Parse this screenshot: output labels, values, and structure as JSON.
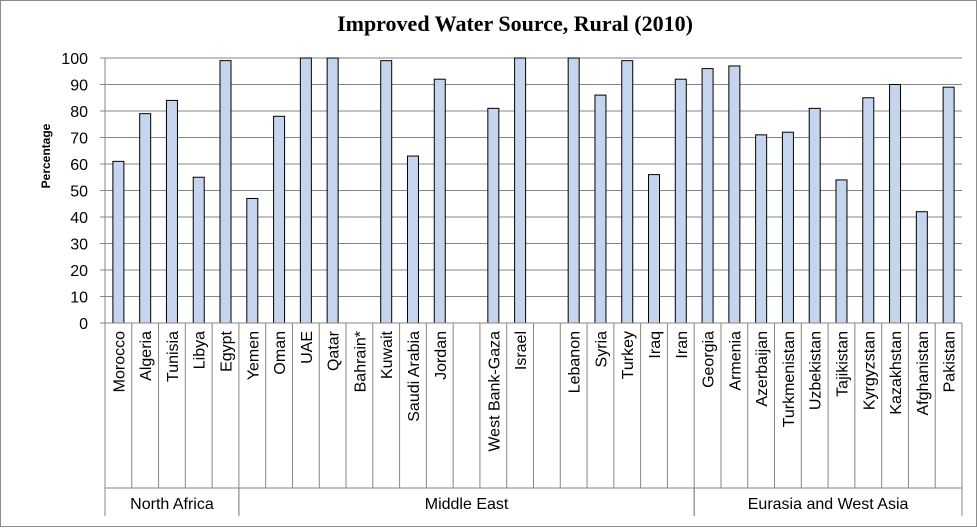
{
  "chart_data": {
    "type": "bar",
    "title": "Improved Water Source, Rural (2010)",
    "xlabel": "",
    "ylabel": "Percentage",
    "ylim": [
      0,
      100
    ],
    "yticks": [
      0,
      10,
      20,
      30,
      40,
      50,
      60,
      70,
      80,
      90,
      100
    ],
    "grid": true,
    "legend": "none",
    "categories": [
      "Morocco",
      "Algeria",
      "Tunisia",
      "Libya",
      "Egypt",
      "Yemen",
      "Oman",
      "UAE",
      "Qatar",
      "Bahrain*",
      "Kuwait",
      "Saudi Arabia",
      "Jordan",
      "",
      "West Bank-Gaza",
      "Israel",
      "",
      "Lebanon",
      "Syria",
      "Turkey",
      "Iraq",
      "Iran",
      "Georgia",
      "Armenia",
      "Azerbaijan",
      "Turkmenistan",
      "Uzbekistan",
      "Tajikistan",
      "Kyrgyzstan",
      "Kazakhstan",
      "Afghanistan",
      "Pakistan"
    ],
    "values": [
      61,
      79,
      84,
      55,
      99,
      47,
      78,
      100,
      100,
      null,
      99,
      63,
      92,
      null,
      81,
      100,
      null,
      100,
      86,
      99,
      56,
      92,
      96,
      97,
      71,
      72,
      81,
      54,
      85,
      90,
      42,
      89
    ],
    "groups": [
      {
        "name": "North Africa",
        "start": 0,
        "end": 4
      },
      {
        "name": "Middle East",
        "start": 5,
        "end": 21
      },
      {
        "name": "Eurasia and West Asia",
        "start": 22,
        "end": 31
      }
    ],
    "bar_color": "#c6d5ee",
    "bar_edge_color": "#000000",
    "grid_color": "#868686"
  }
}
